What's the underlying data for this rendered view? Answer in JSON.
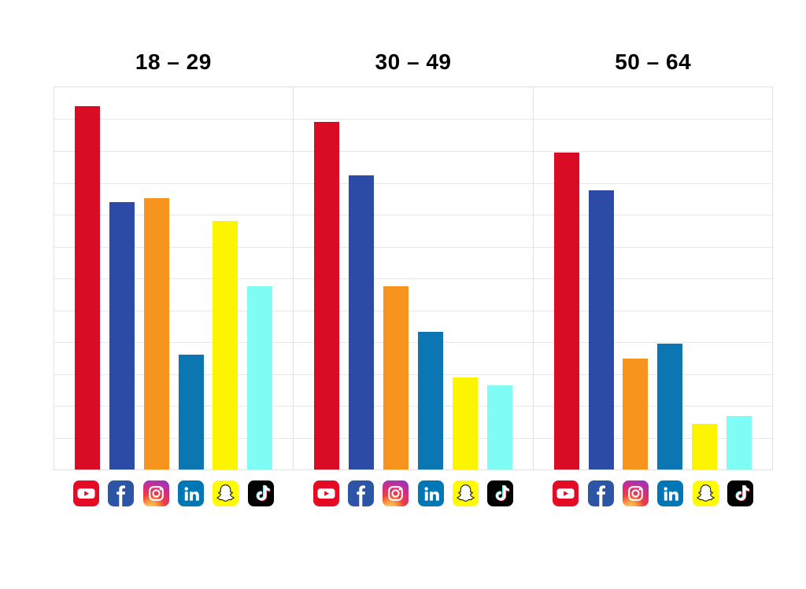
{
  "chart_data": {
    "type": "bar",
    "title": "",
    "groups": [
      {
        "label": "18 – 29",
        "values": [
          95,
          70,
          71,
          30,
          65,
          48
        ]
      },
      {
        "label": "30 – 49",
        "values": [
          91,
          77,
          48,
          36,
          24,
          22
        ]
      },
      {
        "label": "50 – 64",
        "values": [
          83,
          73,
          29,
          33,
          12,
          14
        ]
      }
    ],
    "categories": [
      "YouTube",
      "Facebook",
      "Instagram",
      "LinkedIn",
      "Snapchat",
      "TikTok"
    ],
    "x_axis_icons": [
      "youtube-icon",
      "facebook-icon",
      "instagram-icon",
      "linkedin-icon",
      "snapchat-icon",
      "tiktok-icon"
    ],
    "series_colors": [
      "#da0b25",
      "#2b4ba6",
      "#f7941e",
      "#0b76b1",
      "#fcf400",
      "#7ffcf4"
    ],
    "ylim": [
      0,
      100
    ],
    "grid": {
      "horizontal_intervals": 12,
      "color": "#e6e6e6",
      "frame_color": "#e2e2e2"
    },
    "legend_position": "icons-below-each-panel",
    "icon_colors": {
      "youtube_bg": "#e60b25",
      "facebook_bg": "#2d55a5",
      "instagram_gradient": [
        "#fed77a",
        "#f9a03e",
        "#ee3f3f",
        "#d92d7a",
        "#a633b5",
        "#8531c6"
      ],
      "linkedin_bg": "#0077b5",
      "snapchat_bg": "#fffb00",
      "tiktok_bg": "#010101",
      "tiktok_note_cyan": "#25f4ee",
      "tiktok_note_pink": "#fe2c55"
    }
  }
}
